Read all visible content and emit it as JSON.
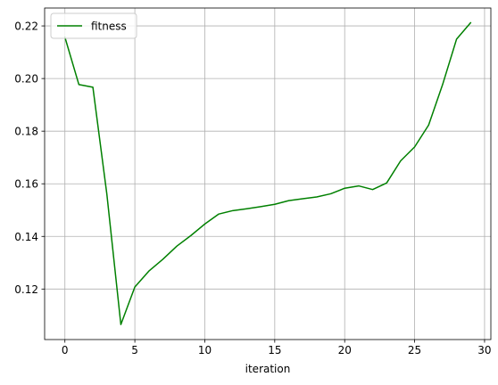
{
  "chart_data": {
    "type": "line",
    "title": "",
    "xlabel": "iteration",
    "ylabel": "",
    "xlim": [
      -1.45,
      30.45
    ],
    "ylim": [
      0.1008,
      0.2268
    ],
    "xticks": [
      0,
      5,
      10,
      15,
      20,
      25,
      30
    ],
    "yticks": [
      0.12,
      0.14,
      0.16,
      0.18,
      0.2,
      0.22
    ],
    "grid": true,
    "legend_position": "top-left",
    "series": [
      {
        "name": "fitness",
        "color": "#008000",
        "x": [
          0,
          1,
          2,
          3,
          4,
          5,
          6,
          7,
          8,
          9,
          10,
          11,
          12,
          13,
          14,
          15,
          16,
          17,
          18,
          19,
          20,
          21,
          22,
          23,
          24,
          25,
          26,
          27,
          28,
          29
        ],
        "y": [
          0.2157,
          0.1977,
          0.1967,
          0.156,
          0.1065,
          0.1208,
          0.1268,
          0.1313,
          0.1363,
          0.1403,
          0.1447,
          0.1485,
          0.1498,
          0.1505,
          0.1513,
          0.1522,
          0.1536,
          0.1543,
          0.155,
          0.1562,
          0.1583,
          0.1592,
          0.1578,
          0.1603,
          0.1687,
          0.174,
          0.1823,
          0.1977,
          0.215,
          0.2212
        ]
      }
    ]
  }
}
